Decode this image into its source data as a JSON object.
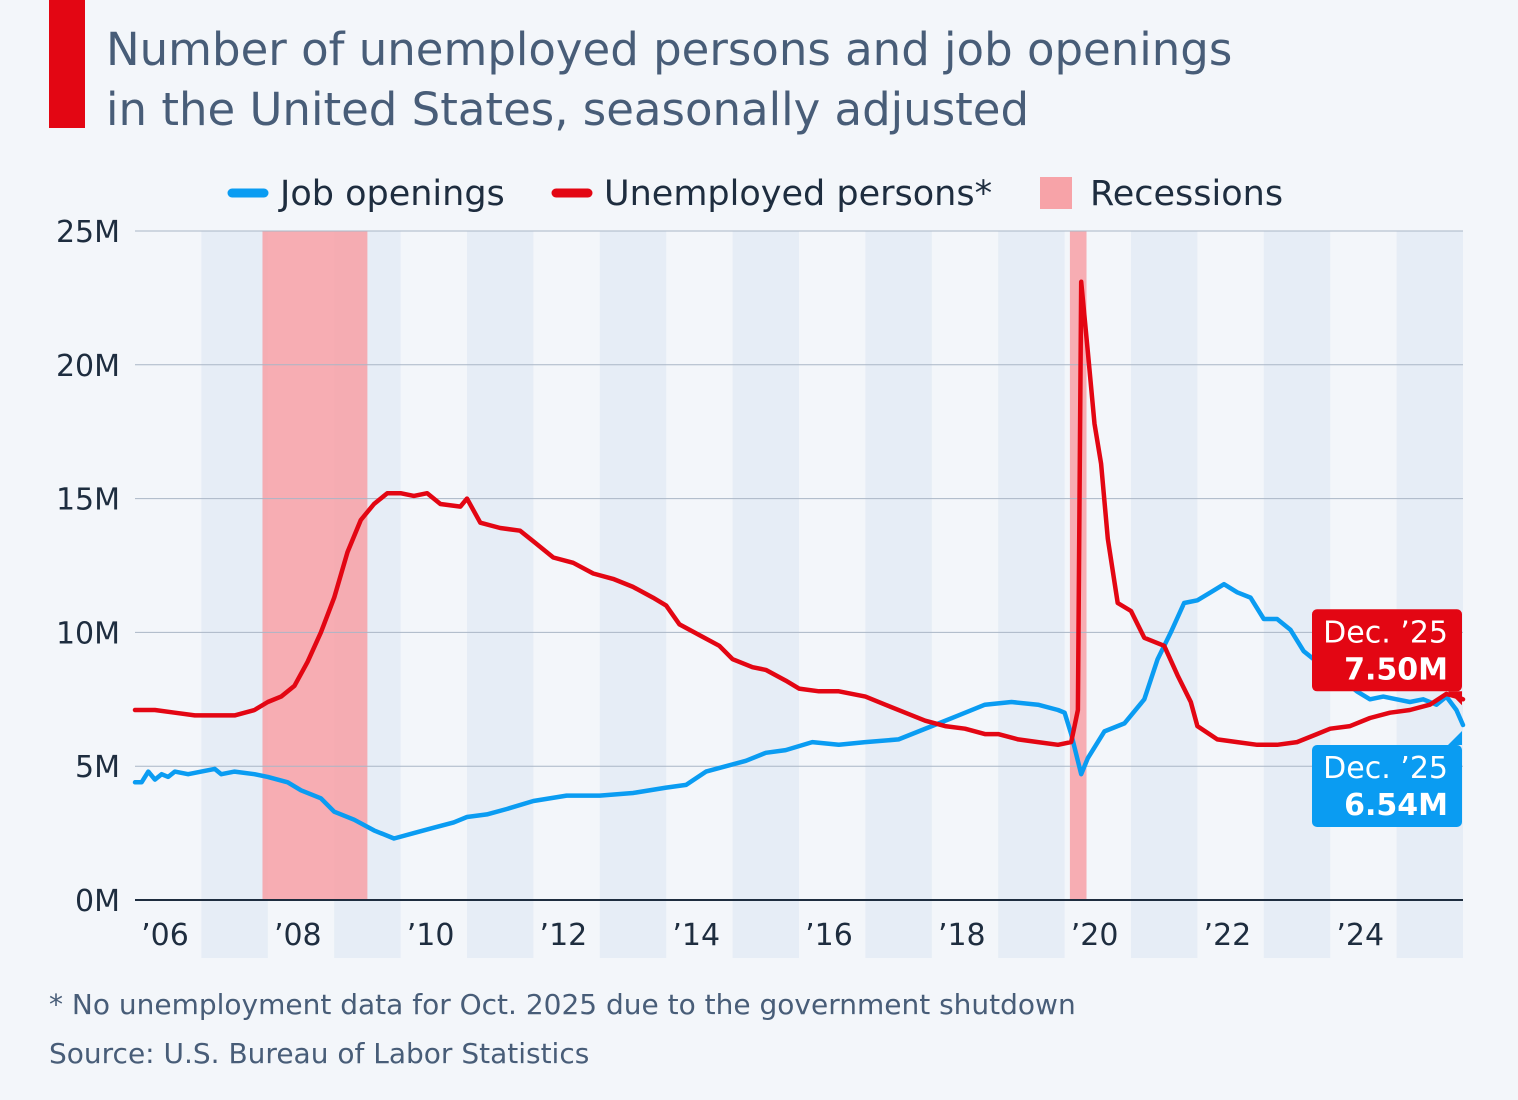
{
  "header": {
    "subtitle_line1": "Number of unemployed persons and job openings",
    "subtitle_line2": "in the United States, seasonally adjusted"
  },
  "colors": {
    "job_openings": "#0a9cf2",
    "unemployed": "#e30613",
    "recession": "#f7a3a8",
    "band": "#e6edf6",
    "grid": "#aab6c6",
    "axis": "#1e2d3f",
    "accent": "#e30613"
  },
  "chart_data": {
    "type": "line",
    "legend": [
      {
        "label": "Job openings",
        "symbol": "line",
        "color": "#0a9cf2"
      },
      {
        "label": "Unemployed persons*",
        "symbol": "line",
        "color": "#e30613"
      },
      {
        "label": "Recessions",
        "symbol": "box",
        "color": "#f7a3a8"
      }
    ],
    "y_ticks": [
      {
        "value": 0,
        "label": "0M"
      },
      {
        "value": 5,
        "label": "5M"
      },
      {
        "value": 10,
        "label": "10M"
      },
      {
        "value": 15,
        "label": "15M"
      },
      {
        "value": 20,
        "label": "20M"
      },
      {
        "value": 25,
        "label": "25M"
      }
    ],
    "x_ticks": [
      {
        "value": 2006.0,
        "label": "’06"
      },
      {
        "value": 2008.0,
        "label": "’08"
      },
      {
        "value": 2010.0,
        "label": "’10"
      },
      {
        "value": 2012.0,
        "label": "’12"
      },
      {
        "value": 2014.0,
        "label": "’14"
      },
      {
        "value": 2016.0,
        "label": "’16"
      },
      {
        "value": 2018.0,
        "label": "’18"
      },
      {
        "value": 2020.0,
        "label": "’20"
      },
      {
        "value": 2022.0,
        "label": "’22"
      },
      {
        "value": 2024.0,
        "label": "’24"
      }
    ],
    "xlim": [
      2006.0,
      2026.0
    ],
    "ylim": [
      0,
      25
    ],
    "recessions": [
      {
        "start": 2007.92,
        "end": 2009.5
      },
      {
        "start": 2020.08,
        "end": 2020.33
      }
    ],
    "series": [
      {
        "name": "Job openings",
        "color": "#0a9cf2",
        "points": [
          [
            2006.0,
            4.4
          ],
          [
            2006.1,
            4.4
          ],
          [
            2006.2,
            4.8
          ],
          [
            2006.3,
            4.5
          ],
          [
            2006.4,
            4.7
          ],
          [
            2006.5,
            4.6
          ],
          [
            2006.6,
            4.8
          ],
          [
            2006.8,
            4.7
          ],
          [
            2007.0,
            4.8
          ],
          [
            2007.2,
            4.9
          ],
          [
            2007.3,
            4.7
          ],
          [
            2007.5,
            4.8
          ],
          [
            2007.8,
            4.7
          ],
          [
            2008.0,
            4.6
          ],
          [
            2008.3,
            4.4
          ],
          [
            2008.5,
            4.1
          ],
          [
            2008.8,
            3.8
          ],
          [
            2009.0,
            3.3
          ],
          [
            2009.3,
            3.0
          ],
          [
            2009.6,
            2.6
          ],
          [
            2009.9,
            2.3
          ],
          [
            2010.2,
            2.5
          ],
          [
            2010.5,
            2.7
          ],
          [
            2010.8,
            2.9
          ],
          [
            2011.0,
            3.1
          ],
          [
            2011.3,
            3.2
          ],
          [
            2011.6,
            3.4
          ],
          [
            2012.0,
            3.7
          ],
          [
            2012.5,
            3.9
          ],
          [
            2013.0,
            3.9
          ],
          [
            2013.5,
            4.0
          ],
          [
            2014.0,
            4.2
          ],
          [
            2014.3,
            4.3
          ],
          [
            2014.6,
            4.8
          ],
          [
            2014.9,
            5.0
          ],
          [
            2015.2,
            5.2
          ],
          [
            2015.5,
            5.5
          ],
          [
            2015.8,
            5.6
          ],
          [
            2016.2,
            5.9
          ],
          [
            2016.6,
            5.8
          ],
          [
            2017.0,
            5.9
          ],
          [
            2017.5,
            6.0
          ],
          [
            2018.0,
            6.5
          ],
          [
            2018.4,
            6.9
          ],
          [
            2018.8,
            7.3
          ],
          [
            2019.2,
            7.4
          ],
          [
            2019.6,
            7.3
          ],
          [
            2019.9,
            7.1
          ],
          [
            2020.0,
            7.0
          ],
          [
            2020.1,
            6.2
          ],
          [
            2020.25,
            4.7
          ],
          [
            2020.35,
            5.3
          ],
          [
            2020.6,
            6.3
          ],
          [
            2020.9,
            6.6
          ],
          [
            2021.2,
            7.5
          ],
          [
            2021.4,
            9.0
          ],
          [
            2021.6,
            10.0
          ],
          [
            2021.8,
            11.1
          ],
          [
            2022.0,
            11.2
          ],
          [
            2022.2,
            11.5
          ],
          [
            2022.4,
            11.8
          ],
          [
            2022.6,
            11.5
          ],
          [
            2022.8,
            11.3
          ],
          [
            2023.0,
            10.5
          ],
          [
            2023.2,
            10.5
          ],
          [
            2023.4,
            10.1
          ],
          [
            2023.6,
            9.3
          ],
          [
            2023.8,
            8.9
          ],
          [
            2024.0,
            8.7
          ],
          [
            2024.2,
            8.2
          ],
          [
            2024.4,
            7.8
          ],
          [
            2024.6,
            7.5
          ],
          [
            2024.8,
            7.6
          ],
          [
            2025.0,
            7.5
          ],
          [
            2025.2,
            7.4
          ],
          [
            2025.4,
            7.5
          ],
          [
            2025.6,
            7.3
          ],
          [
            2025.75,
            7.6
          ],
          [
            2025.9,
            7.1
          ],
          [
            2026.0,
            6.54
          ]
        ]
      },
      {
        "name": "Unemployed persons*",
        "color": "#e30613",
        "points": [
          [
            2006.0,
            7.1
          ],
          [
            2006.3,
            7.1
          ],
          [
            2006.6,
            7.0
          ],
          [
            2006.9,
            6.9
          ],
          [
            2007.2,
            6.9
          ],
          [
            2007.5,
            6.9
          ],
          [
            2007.8,
            7.1
          ],
          [
            2008.0,
            7.4
          ],
          [
            2008.2,
            7.6
          ],
          [
            2008.4,
            8.0
          ],
          [
            2008.6,
            8.9
          ],
          [
            2008.8,
            10.0
          ],
          [
            2009.0,
            11.3
          ],
          [
            2009.2,
            13.0
          ],
          [
            2009.4,
            14.2
          ],
          [
            2009.6,
            14.8
          ],
          [
            2009.8,
            15.2
          ],
          [
            2010.0,
            15.2
          ],
          [
            2010.2,
            15.1
          ],
          [
            2010.4,
            15.2
          ],
          [
            2010.6,
            14.8
          ],
          [
            2010.9,
            14.7
          ],
          [
            2011.0,
            15.0
          ],
          [
            2011.2,
            14.1
          ],
          [
            2011.5,
            13.9
          ],
          [
            2011.8,
            13.8
          ],
          [
            2012.0,
            13.4
          ],
          [
            2012.3,
            12.8
          ],
          [
            2012.6,
            12.6
          ],
          [
            2012.9,
            12.2
          ],
          [
            2013.2,
            12.0
          ],
          [
            2013.5,
            11.7
          ],
          [
            2013.8,
            11.3
          ],
          [
            2014.0,
            11.0
          ],
          [
            2014.2,
            10.3
          ],
          [
            2014.5,
            9.9
          ],
          [
            2014.8,
            9.5
          ],
          [
            2015.0,
            9.0
          ],
          [
            2015.3,
            8.7
          ],
          [
            2015.5,
            8.6
          ],
          [
            2015.8,
            8.2
          ],
          [
            2016.0,
            7.9
          ],
          [
            2016.3,
            7.8
          ],
          [
            2016.6,
            7.8
          ],
          [
            2017.0,
            7.6
          ],
          [
            2017.3,
            7.3
          ],
          [
            2017.6,
            7.0
          ],
          [
            2017.9,
            6.7
          ],
          [
            2018.2,
            6.5
          ],
          [
            2018.5,
            6.4
          ],
          [
            2018.8,
            6.2
          ],
          [
            2019.0,
            6.2
          ],
          [
            2019.3,
            6.0
          ],
          [
            2019.6,
            5.9
          ],
          [
            2019.9,
            5.8
          ],
          [
            2020.1,
            5.9
          ],
          [
            2020.2,
            7.1
          ],
          [
            2020.25,
            23.1
          ],
          [
            2020.35,
            20.5
          ],
          [
            2020.45,
            17.8
          ],
          [
            2020.55,
            16.3
          ],
          [
            2020.65,
            13.5
          ],
          [
            2020.8,
            11.1
          ],
          [
            2021.0,
            10.8
          ],
          [
            2021.2,
            9.8
          ],
          [
            2021.5,
            9.5
          ],
          [
            2021.7,
            8.4
          ],
          [
            2021.9,
            7.4
          ],
          [
            2022.0,
            6.5
          ],
          [
            2022.3,
            6.0
          ],
          [
            2022.6,
            5.9
          ],
          [
            2022.9,
            5.8
          ],
          [
            2023.2,
            5.8
          ],
          [
            2023.5,
            5.9
          ],
          [
            2023.8,
            6.2
          ],
          [
            2024.0,
            6.4
          ],
          [
            2024.3,
            6.5
          ],
          [
            2024.6,
            6.8
          ],
          [
            2024.9,
            7.0
          ],
          [
            2025.2,
            7.1
          ],
          [
            2025.5,
            7.3
          ],
          [
            2025.75,
            7.7
          ],
          [
            2025.9,
            7.6
          ],
          [
            2026.0,
            7.5
          ]
        ]
      }
    ],
    "callouts": [
      {
        "series": "Unemployed persons*",
        "line1": "Dec. ’25",
        "line2": "7.50M",
        "color": "#e30613"
      },
      {
        "series": "Job openings",
        "line1": "Dec. ’25",
        "line2": "6.54M",
        "color": "#0a9cf2"
      }
    ]
  },
  "footer": {
    "footnote": "* No unemployment data for Oct. 2025 due to the government shutdown",
    "source": "Source: U.S. Bureau of Labor Statistics"
  }
}
